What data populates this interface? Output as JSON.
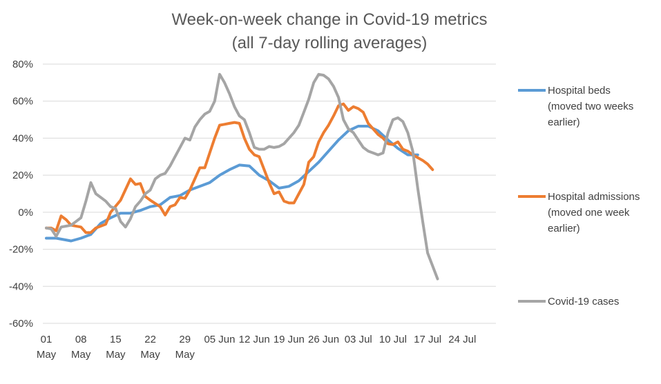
{
  "chart_data": {
    "type": "line",
    "title": "Week-on-week change in Covid-19 metrics",
    "subtitle": "(all 7-day rolling averages)",
    "xlabel": "",
    "ylabel": "",
    "ylim": [
      -0.6,
      0.8
    ],
    "y_ticks": [
      "80%",
      "60%",
      "40%",
      "20%",
      "0%",
      "-20%",
      "-40%",
      "-60%"
    ],
    "x_range_days": [
      1,
      89
    ],
    "x_ticks": [
      {
        "day": 1,
        "line1": "01",
        "line2": "May"
      },
      {
        "day": 8,
        "line1": "08",
        "line2": "May"
      },
      {
        "day": 15,
        "line1": "15",
        "line2": "May"
      },
      {
        "day": 22,
        "line1": "22",
        "line2": "May"
      },
      {
        "day": 29,
        "line1": "29",
        "line2": "May"
      },
      {
        "day": 36,
        "line1": "05 Jun",
        "line2": ""
      },
      {
        "day": 43,
        "line1": "12 Jun",
        "line2": ""
      },
      {
        "day": 50,
        "line1": "19 Jun",
        "line2": ""
      },
      {
        "day": 57,
        "line1": "26 Jun",
        "line2": ""
      },
      {
        "day": 64,
        "line1": "03 Jul",
        "line2": ""
      },
      {
        "day": 71,
        "line1": "10 Jul",
        "line2": ""
      },
      {
        "day": 78,
        "line1": "17 Jul",
        "line2": ""
      },
      {
        "day": 85,
        "line1": "24 Jul",
        "line2": ""
      }
    ],
    "grid": true,
    "legend_position": "right",
    "series": [
      {
        "name": "Hospital beds (moved two weeks earlier)",
        "legend_lines": [
          "Hospital beds",
          "(moved  two weeks",
          "earlier)"
        ],
        "color": "#5b9bd5",
        "points": [
          [
            1,
            -0.14
          ],
          [
            3,
            -0.14
          ],
          [
            5,
            -0.15
          ],
          [
            6,
            -0.155
          ],
          [
            8,
            -0.14
          ],
          [
            10,
            -0.12
          ],
          [
            12,
            -0.06
          ],
          [
            14,
            -0.03
          ],
          [
            16,
            -0.005
          ],
          [
            18,
            -0.005
          ],
          [
            20,
            0.01
          ],
          [
            22,
            0.03
          ],
          [
            24,
            0.04
          ],
          [
            26,
            0.08
          ],
          [
            28,
            0.09
          ],
          [
            30,
            0.12
          ],
          [
            32,
            0.14
          ],
          [
            34,
            0.16
          ],
          [
            36,
            0.2
          ],
          [
            38,
            0.23
          ],
          [
            40,
            0.255
          ],
          [
            42,
            0.25
          ],
          [
            44,
            0.2
          ],
          [
            46,
            0.17
          ],
          [
            48,
            0.13
          ],
          [
            50,
            0.14
          ],
          [
            52,
            0.17
          ],
          [
            54,
            0.22
          ],
          [
            56,
            0.27
          ],
          [
            58,
            0.33
          ],
          [
            60,
            0.39
          ],
          [
            62,
            0.44
          ],
          [
            64,
            0.465
          ],
          [
            66,
            0.465
          ],
          [
            68,
            0.44
          ],
          [
            70,
            0.39
          ],
          [
            72,
            0.345
          ],
          [
            74,
            0.31
          ],
          [
            76,
            0.31
          ]
        ]
      },
      {
        "name": "Hospital admissions (moved one week earlier)",
        "legend_lines": [
          "Hospital admissions",
          "(moved one week",
          "earlier)"
        ],
        "color": "#ed7d31",
        "points": [
          [
            1,
            -0.085
          ],
          [
            2,
            -0.085
          ],
          [
            3,
            -0.1
          ],
          [
            4,
            -0.02
          ],
          [
            5,
            -0.04
          ],
          [
            6,
            -0.07
          ],
          [
            8,
            -0.08
          ],
          [
            9,
            -0.11
          ],
          [
            10,
            -0.11
          ],
          [
            11,
            -0.085
          ],
          [
            13,
            -0.065
          ],
          [
            14,
            0
          ],
          [
            16,
            0.065
          ],
          [
            18,
            0.18
          ],
          [
            19,
            0.15
          ],
          [
            20,
            0.155
          ],
          [
            21,
            0.085
          ],
          [
            22,
            0.065
          ],
          [
            24,
            0.03
          ],
          [
            25,
            -0.015
          ],
          [
            26,
            0.03
          ],
          [
            27,
            0.04
          ],
          [
            28,
            0.08
          ],
          [
            29,
            0.075
          ],
          [
            30,
            0.12
          ],
          [
            31,
            0.18
          ],
          [
            32,
            0.24
          ],
          [
            33,
            0.24
          ],
          [
            34,
            0.32
          ],
          [
            35,
            0.4
          ],
          [
            36,
            0.47
          ],
          [
            37,
            0.475
          ],
          [
            38,
            0.48
          ],
          [
            39,
            0.485
          ],
          [
            40,
            0.48
          ],
          [
            41,
            0.4
          ],
          [
            42,
            0.34
          ],
          [
            43,
            0.31
          ],
          [
            44,
            0.3
          ],
          [
            45,
            0.23
          ],
          [
            46,
            0.16
          ],
          [
            47,
            0.1
          ],
          [
            48,
            0.11
          ],
          [
            49,
            0.06
          ],
          [
            50,
            0.05
          ],
          [
            51,
            0.05
          ],
          [
            52,
            0.1
          ],
          [
            53,
            0.15
          ],
          [
            54,
            0.27
          ],
          [
            55,
            0.3
          ],
          [
            56,
            0.38
          ],
          [
            57,
            0.43
          ],
          [
            58,
            0.47
          ],
          [
            59,
            0.52
          ],
          [
            60,
            0.575
          ],
          [
            61,
            0.585
          ],
          [
            62,
            0.55
          ],
          [
            63,
            0.57
          ],
          [
            64,
            0.56
          ],
          [
            65,
            0.54
          ],
          [
            66,
            0.48
          ],
          [
            67,
            0.45
          ],
          [
            68,
            0.42
          ],
          [
            69,
            0.4
          ],
          [
            70,
            0.37
          ],
          [
            71,
            0.365
          ],
          [
            72,
            0.38
          ],
          [
            73,
            0.34
          ],
          [
            74,
            0.33
          ],
          [
            75,
            0.31
          ],
          [
            77,
            0.28
          ],
          [
            78,
            0.26
          ],
          [
            79,
            0.23
          ]
        ]
      },
      {
        "name": "Covid-19 cases",
        "legend_lines": [
          "Covid-19 cases"
        ],
        "color": "#a5a5a5",
        "points": [
          [
            1,
            -0.085
          ],
          [
            2,
            -0.09
          ],
          [
            3,
            -0.13
          ],
          [
            4,
            -0.08
          ],
          [
            5,
            -0.075
          ],
          [
            6,
            -0.07
          ],
          [
            7,
            -0.05
          ],
          [
            8,
            -0.03
          ],
          [
            9,
            0.06
          ],
          [
            10,
            0.16
          ],
          [
            11,
            0.1
          ],
          [
            12,
            0.08
          ],
          [
            13,
            0.06
          ],
          [
            14,
            0.03
          ],
          [
            15,
            0.02
          ],
          [
            16,
            -0.05
          ],
          [
            17,
            -0.08
          ],
          [
            18,
            -0.035
          ],
          [
            19,
            0.03
          ],
          [
            20,
            0.06
          ],
          [
            21,
            0.1
          ],
          [
            22,
            0.12
          ],
          [
            23,
            0.18
          ],
          [
            24,
            0.2
          ],
          [
            25,
            0.21
          ],
          [
            26,
            0.25
          ],
          [
            27,
            0.3
          ],
          [
            28,
            0.35
          ],
          [
            29,
            0.4
          ],
          [
            30,
            0.39
          ],
          [
            31,
            0.46
          ],
          [
            32,
            0.5
          ],
          [
            33,
            0.53
          ],
          [
            34,
            0.545
          ],
          [
            35,
            0.6
          ],
          [
            36,
            0.745
          ],
          [
            37,
            0.7
          ],
          [
            38,
            0.64
          ],
          [
            39,
            0.57
          ],
          [
            40,
            0.52
          ],
          [
            41,
            0.5
          ],
          [
            42,
            0.43
          ],
          [
            43,
            0.35
          ],
          [
            44,
            0.34
          ],
          [
            45,
            0.34
          ],
          [
            46,
            0.355
          ],
          [
            47,
            0.35
          ],
          [
            48,
            0.355
          ],
          [
            49,
            0.37
          ],
          [
            50,
            0.4
          ],
          [
            51,
            0.43
          ],
          [
            52,
            0.47
          ],
          [
            53,
            0.54
          ],
          [
            54,
            0.61
          ],
          [
            55,
            0.7
          ],
          [
            56,
            0.745
          ],
          [
            57,
            0.74
          ],
          [
            58,
            0.72
          ],
          [
            59,
            0.68
          ],
          [
            60,
            0.62
          ],
          [
            61,
            0.5
          ],
          [
            62,
            0.45
          ],
          [
            63,
            0.43
          ],
          [
            64,
            0.39
          ],
          [
            65,
            0.35
          ],
          [
            66,
            0.33
          ],
          [
            67,
            0.32
          ],
          [
            68,
            0.31
          ],
          [
            69,
            0.32
          ],
          [
            70,
            0.43
          ],
          [
            71,
            0.5
          ],
          [
            72,
            0.51
          ],
          [
            73,
            0.49
          ],
          [
            74,
            0.43
          ],
          [
            75,
            0.33
          ],
          [
            76,
            0.13
          ],
          [
            77,
            -0.05
          ],
          [
            78,
            -0.22
          ],
          [
            80,
            -0.36
          ]
        ]
      }
    ]
  }
}
